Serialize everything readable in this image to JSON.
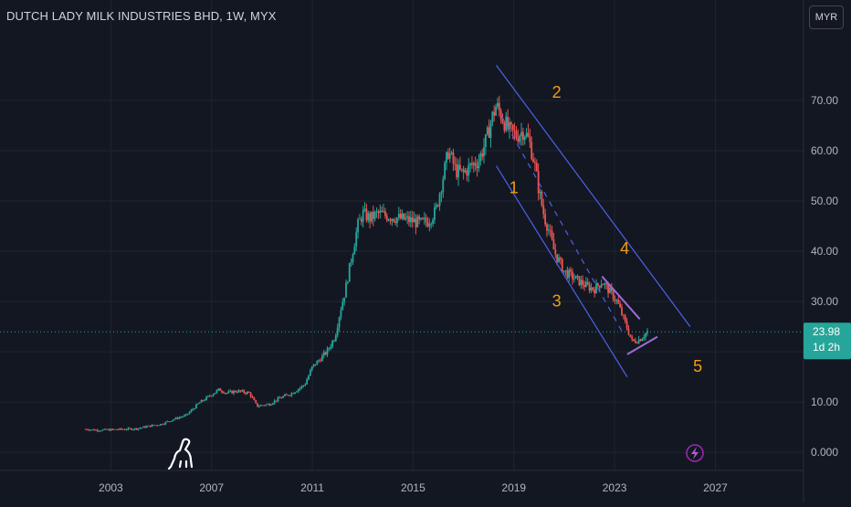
{
  "header": {
    "title": "DUTCH LADY MILK INDUSTRIES BHD, 1W, MYX",
    "currency": "MYR"
  },
  "price_badge": {
    "price": "23.98",
    "countdown": "1d 2h",
    "color": "#26a69a"
  },
  "chart_data": {
    "type": "candlestick",
    "title": "DUTCH LADY MILK INDUSTRIES BHD, 1W, MYX",
    "currency": "MYR",
    "x_ticks": [
      "2003",
      "2007",
      "2011",
      "2015",
      "2019",
      "2023",
      "2027"
    ],
    "x_range": [
      1998.6,
      2030.5
    ],
    "y_ticks": [
      "0.000",
      "10.00",
      "20.00",
      "30.00",
      "40.00",
      "50.00",
      "60.00",
      "70.00"
    ],
    "y_range": [
      -3.6,
      82.7
    ],
    "last_price": 23.98,
    "grid": true,
    "up_color": "#26a69a",
    "down_color": "#ef5350",
    "series": [
      {
        "name": "price",
        "points": [
          [
            2002.0,
            4.6
          ],
          [
            2002.5,
            4.4
          ],
          [
            2003.0,
            4.5
          ],
          [
            2003.5,
            4.6
          ],
          [
            2004.0,
            4.7
          ],
          [
            2004.5,
            5.2
          ],
          [
            2005.0,
            5.6
          ],
          [
            2005.5,
            6.6
          ],
          [
            2006.0,
            7.4
          ],
          [
            2006.5,
            9.8
          ],
          [
            2007.0,
            11.5
          ],
          [
            2007.3,
            12.5
          ],
          [
            2007.6,
            11.8
          ],
          [
            2008.0,
            12.2
          ],
          [
            2008.5,
            11.8
          ],
          [
            2008.8,
            9.2
          ],
          [
            2009.3,
            9.6
          ],
          [
            2009.7,
            10.8
          ],
          [
            2010.2,
            11.8
          ],
          [
            2010.7,
            13.5
          ],
          [
            2011.0,
            17.0
          ],
          [
            2011.3,
            18.5
          ],
          [
            2011.6,
            20.2
          ],
          [
            2011.9,
            23.0
          ],
          [
            2012.1,
            28.0
          ],
          [
            2012.3,
            32.0
          ],
          [
            2012.6,
            40.0
          ],
          [
            2012.8,
            45.0
          ],
          [
            2013.0,
            47.5
          ],
          [
            2013.3,
            46.5
          ],
          [
            2013.6,
            47.5
          ],
          [
            2014.0,
            47.0
          ],
          [
            2014.5,
            46.5
          ],
          [
            2015.0,
            46.0
          ],
          [
            2015.3,
            45.5
          ],
          [
            2015.6,
            46.0
          ],
          [
            2015.9,
            48.0
          ],
          [
            2016.2,
            55.0
          ],
          [
            2016.4,
            60.0
          ],
          [
            2016.7,
            56.0
          ],
          [
            2017.0,
            55.5
          ],
          [
            2017.3,
            57.0
          ],
          [
            2017.6,
            58.0
          ],
          [
            2017.9,
            62.0
          ],
          [
            2018.1,
            66.0
          ],
          [
            2018.3,
            69.0
          ],
          [
            2018.5,
            67.0
          ],
          [
            2018.8,
            64.0
          ],
          [
            2019.1,
            63.0
          ],
          [
            2019.4,
            64.0
          ],
          [
            2019.6,
            62.0
          ],
          [
            2019.8,
            58.0
          ],
          [
            2020.0,
            52.0
          ],
          [
            2020.2,
            47.0
          ],
          [
            2020.4,
            44.0
          ],
          [
            2020.6,
            40.0
          ],
          [
            2020.8,
            38.0
          ],
          [
            2021.0,
            36.0
          ],
          [
            2021.3,
            35.0
          ],
          [
            2021.6,
            34.0
          ],
          [
            2021.9,
            33.0
          ],
          [
            2022.2,
            32.5
          ],
          [
            2022.5,
            34.0
          ],
          [
            2022.8,
            32.0
          ],
          [
            2023.1,
            30.0
          ],
          [
            2023.4,
            26.0
          ],
          [
            2023.7,
            22.0
          ],
          [
            2024.0,
            22.5
          ],
          [
            2024.3,
            24.0
          ]
        ]
      }
    ],
    "annotations": [
      {
        "label": "1",
        "x": 2019.0,
        "y": 51.5
      },
      {
        "label": "2",
        "x": 2020.7,
        "y": 70.5
      },
      {
        "label": "3",
        "x": 2020.7,
        "y": 29.0
      },
      {
        "label": "4",
        "x": 2023.4,
        "y": 39.5
      },
      {
        "label": "5",
        "x": 2026.3,
        "y": 16.0
      }
    ],
    "annotation_color": "#f39c12",
    "channel_lines": [
      {
        "from": [
          2018.3,
          77.0
        ],
        "to": [
          2026.0,
          25.0
        ],
        "color": "#4d62e6"
      },
      {
        "from": [
          2018.3,
          57.0
        ],
        "to": [
          2023.5,
          15.0
        ],
        "color": "#4d62e6"
      },
      {
        "from": [
          2018.5,
          67.0
        ],
        "to": [
          2023.3,
          24.0
        ],
        "color": "#4d62e6",
        "dashed": true
      },
      {
        "from": [
          2022.5,
          35.0
        ],
        "to": [
          2024.0,
          26.5
        ],
        "color": "#9c6bd8"
      },
      {
        "from": [
          2023.5,
          19.5
        ],
        "to": [
          2024.7,
          23.0
        ],
        "color": "#9c6bd8"
      }
    ]
  },
  "icons": {
    "logo": "dinosaur-logo-icon",
    "flash": "lightning-icon"
  }
}
